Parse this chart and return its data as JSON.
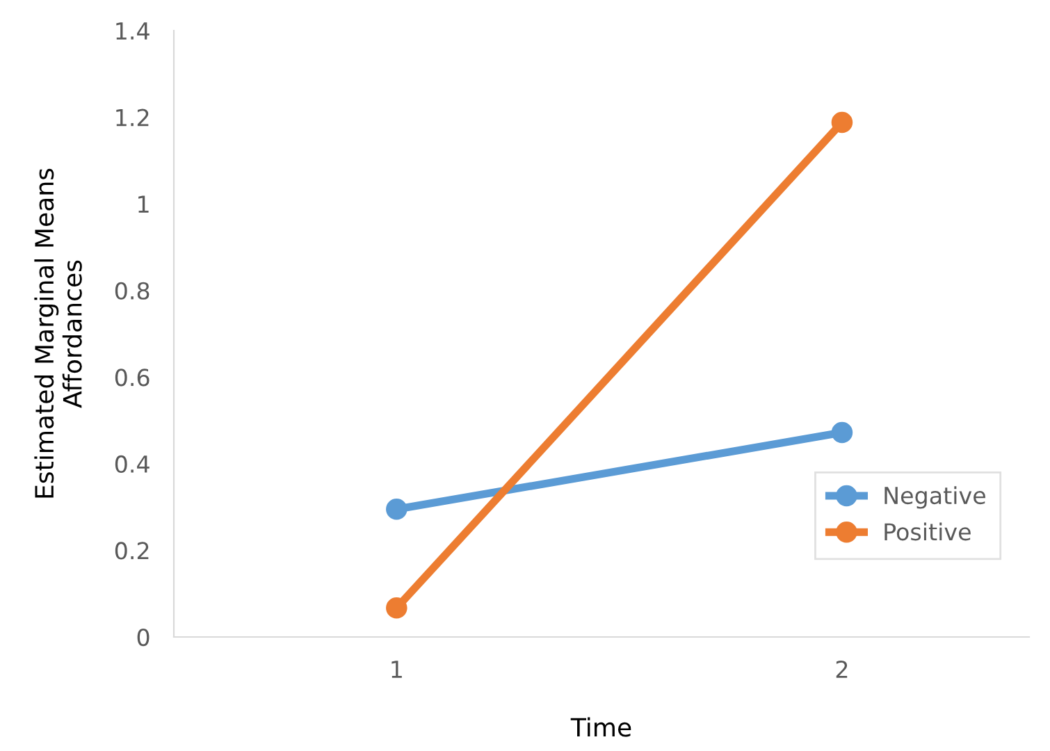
{
  "chart_data": {
    "type": "line",
    "xlabel": "Time",
    "ylabel": "Estimated Marginal Means\nAffordances",
    "categories": [
      "1",
      "2"
    ],
    "series": [
      {
        "name": "Negative",
        "color": "#5b9bd5",
        "values": [
          0.295,
          0.472
        ]
      },
      {
        "name": "Positive",
        "color": "#ed7d31",
        "values": [
          0.067,
          1.188
        ]
      }
    ],
    "ylim": [
      0,
      1.4
    ],
    "yticks": [
      0,
      0.2,
      0.4,
      0.6,
      0.8,
      {
        "value": 1,
        "label": "1"
      },
      1.2,
      1.4
    ],
    "marker": "circle",
    "line_style": "solid",
    "legend": "right",
    "grid": false
  }
}
